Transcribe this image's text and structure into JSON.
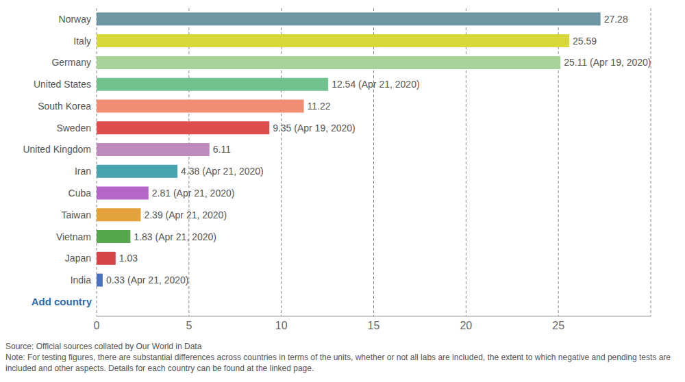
{
  "chart_data": {
    "type": "bar",
    "orientation": "horizontal",
    "categories": [
      "Norway",
      "Italy",
      "Germany",
      "United States",
      "South Korea",
      "Sweden",
      "United Kingdom",
      "Iran",
      "Cuba",
      "Taiwan",
      "Vietnam",
      "Japan",
      "India"
    ],
    "values": [
      27.28,
      25.59,
      25.11,
      12.54,
      11.22,
      9.35,
      6.11,
      4.38,
      2.81,
      2.39,
      1.83,
      1.03,
      0.33
    ],
    "value_labels": [
      "27.28",
      "25.59",
      "25.11 (Apr 19, 2020)",
      "12.54 (Apr 21, 2020)",
      "11.22",
      "9.35 (Apr 19, 2020)",
      "6.11",
      "4.38 (Apr 21, 2020)",
      "2.81 (Apr 21, 2020)",
      "2.39 (Apr 21, 2020)",
      "1.83 (Apr 21, 2020)",
      "1.03",
      "0.33 (Apr 21, 2020)"
    ],
    "colors": [
      "#6e97a3",
      "#d6d83c",
      "#a8d49a",
      "#72c290",
      "#ef8e72",
      "#e04d4d",
      "#be89bd",
      "#47a3ad",
      "#b466c9",
      "#e3a23b",
      "#55a64c",
      "#d64545",
      "#4a72c0"
    ],
    "xlim": [
      0,
      30
    ],
    "xticks": [
      0,
      5,
      10,
      15,
      20,
      25
    ],
    "grid": true,
    "data_labels": true,
    "annotations": [
      "Add country"
    ],
    "source": "Source: Official sources collated by Our World in Data",
    "note": "Note: For testing figures, there are substantial differences across countries in terms of the units, whether or not all labs are included, the extent to which negative and pending tests are included and other aspects. Details for each country can be found at the linked page."
  }
}
